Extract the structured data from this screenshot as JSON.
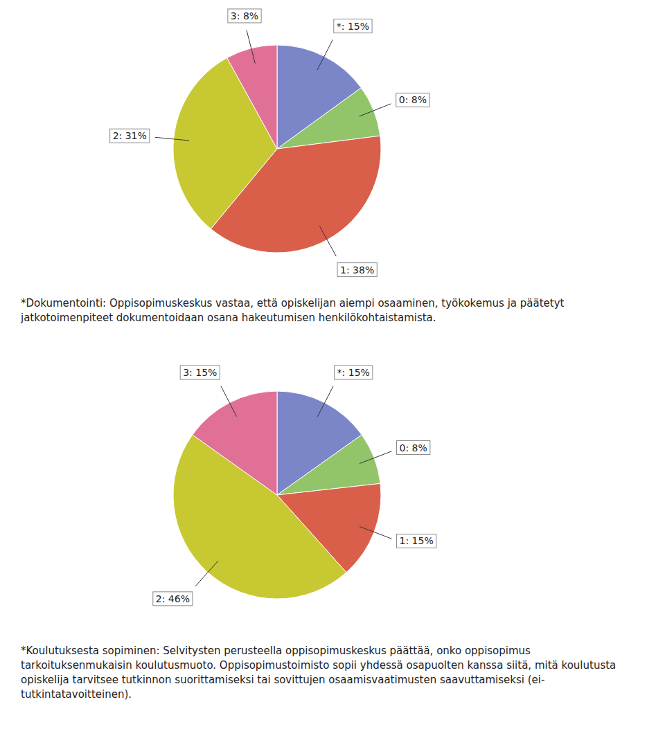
{
  "chart_data": [
    {
      "type": "pie",
      "categories": [
        "*",
        "0",
        "1",
        "2",
        "3"
      ],
      "values": [
        15,
        8,
        38,
        31,
        8
      ],
      "value_labels": [
        "*: 15%",
        "0: 8%",
        "1: 38%",
        "2: 31%",
        "3: 8%"
      ],
      "colors": [
        "#7b86c8",
        "#92c46a",
        "#d95f4b",
        "#c8c832",
        "#e07096"
      ],
      "data_labels": true,
      "annotations": [
        "*Dokumentointi: Oppisopimuskeskus vastaa, että opiskelijan aiempi osaaminen, työkokemus ja päätetyt jatkotoimenpiteet dokumentoidaan osana hakeutumisen henkilökohtaistamista."
      ]
    },
    {
      "type": "pie",
      "categories": [
        "*",
        "0",
        "1",
        "2",
        "3"
      ],
      "values": [
        15,
        8,
        15,
        46,
        15
      ],
      "value_labels": [
        "*: 15%",
        "0: 8%",
        "1: 15%",
        "2: 46%",
        "3: 15%"
      ],
      "colors": [
        "#7b86c8",
        "#92c46a",
        "#d95f4b",
        "#c8c832",
        "#e07096"
      ],
      "data_labels": true,
      "annotations": [
        "*Koulutuksesta sopiminen: Selvitysten perusteella oppisopimuskeskus päättää, onko oppisopimus tarkoituksenmukaisin koulutusmuoto. Oppisopimustoimisto sopii yhdessä osapuolten kanssa siitä, mitä koulutusta opiskelija tarvitsee tutkinnon suorittamiseksi tai sovittujen osaamisvaatimusten saavuttamiseksi (ei-tutkintatavoitteinen)."
      ]
    }
  ]
}
